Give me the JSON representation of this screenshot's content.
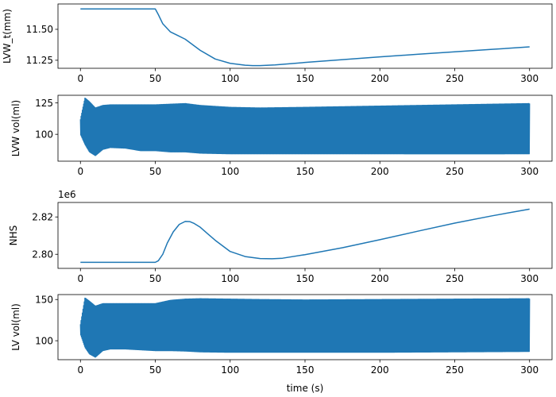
{
  "chart_data": [
    {
      "type": "line",
      "ylabel": "LVW_t(mm)",
      "xlabel": "",
      "xlim": [
        -15,
        315
      ],
      "ylim": [
        11.185,
        11.705
      ],
      "xticks": [
        0,
        50,
        100,
        150,
        200,
        250,
        300
      ],
      "xtick_labels": [
        "0",
        "50",
        "100",
        "150",
        "200",
        "250",
        "300"
      ],
      "yticks": [
        11.25,
        11.5
      ],
      "ytick_labels": [
        "11.25",
        "11.50"
      ],
      "offset_text": "",
      "color": "#1f77b4",
      "series": [
        {
          "x": [
            0,
            10,
            20,
            30,
            40,
            50,
            52,
            55,
            60,
            65,
            70,
            75,
            80,
            90,
            100,
            110,
            115,
            120,
            130,
            140,
            150,
            175,
            200,
            225,
            250,
            275,
            300
          ],
          "y": [
            11.665,
            11.665,
            11.665,
            11.665,
            11.665,
            11.665,
            11.62,
            11.545,
            11.48,
            11.45,
            11.42,
            11.375,
            11.33,
            11.26,
            11.225,
            11.21,
            11.207,
            11.207,
            11.212,
            11.222,
            11.232,
            11.255,
            11.277,
            11.298,
            11.318,
            11.338,
            11.358
          ]
        }
      ]
    },
    {
      "type": "line",
      "ylabel": "LVW vol(ml)",
      "xlabel": "",
      "xlim": [
        -15,
        315
      ],
      "ylim": [
        78.6,
        131.1
      ],
      "xticks": [
        0,
        50,
        100,
        150,
        200,
        250,
        300
      ],
      "xtick_labels": [
        "0",
        "50",
        "100",
        "150",
        "200",
        "250",
        "300"
      ],
      "yticks": [
        100,
        125
      ],
      "ytick_labels": [
        "100",
        "125"
      ],
      "offset_text": "",
      "color": "#1f77b4",
      "oscillating": true,
      "series": [
        {
          "x": [
            0,
            3,
            6,
            10,
            15,
            20,
            30,
            40,
            50,
            60,
            70,
            80,
            100,
            120,
            150,
            200,
            250,
            300
          ],
          "upper": [
            112,
            129,
            126,
            121,
            123,
            123.5,
            123.5,
            123.5,
            123.5,
            124,
            124.5,
            123,
            121.5,
            121,
            121.5,
            122.5,
            123.5,
            124.5
          ],
          "lower": [
            100,
            92,
            86,
            83,
            88,
            89.5,
            89,
            87,
            87,
            86,
            86,
            85,
            84.5,
            84.5,
            84.5,
            84.5,
            84.5,
            84.5
          ]
        }
      ]
    },
    {
      "type": "line",
      "ylabel": "NHS",
      "xlabel": "",
      "xlim": [
        -15,
        315
      ],
      "ylim": [
        2792450,
        2827750
      ],
      "xticks": [
        0,
        50,
        100,
        150,
        200,
        250,
        300
      ],
      "xtick_labels": [
        "0",
        "50",
        "100",
        "150",
        "200",
        "250",
        "300"
      ],
      "yticks": [
        2800000,
        2820000
      ],
      "ytick_labels": [
        "2.80",
        "2.82"
      ],
      "offset_text": "1e6",
      "color": "#1f77b4",
      "series": [
        {
          "x": [
            0,
            10,
            20,
            30,
            40,
            50,
            52,
            55,
            58,
            62,
            66,
            70,
            73,
            76,
            80,
            85,
            90,
            100,
            110,
            120,
            128,
            135,
            150,
            175,
            200,
            225,
            250,
            275,
            300
          ],
          "y": [
            2795700,
            2795700,
            2795700,
            2795700,
            2795700,
            2795700,
            2796500,
            2800000,
            2806000,
            2812000,
            2816000,
            2817600,
            2817500,
            2816500,
            2814500,
            2811000,
            2807500,
            2801500,
            2798800,
            2797700,
            2797600,
            2797900,
            2799800,
            2803500,
            2807800,
            2812300,
            2816700,
            2820600,
            2824200
          ]
        }
      ]
    },
    {
      "type": "line",
      "ylabel": "LV vol(ml)",
      "xlabel": "time (s)",
      "xlim": [
        -15,
        315
      ],
      "ylim": [
        77.0,
        156.0
      ],
      "xticks": [
        0,
        50,
        100,
        150,
        200,
        250,
        300
      ],
      "xtick_labels": [
        "0",
        "50",
        "100",
        "150",
        "200",
        "250",
        "300"
      ],
      "yticks": [
        100,
        150
      ],
      "ytick_labels": [
        "100",
        "150"
      ],
      "offset_text": "",
      "color": "#1f77b4",
      "oscillating": true,
      "series": [
        {
          "x": [
            0,
            3,
            6,
            10,
            15,
            20,
            30,
            40,
            50,
            55,
            60,
            70,
            80,
            100,
            120,
            150,
            200,
            250,
            300
          ],
          "upper": [
            120,
            152,
            148,
            142,
            145,
            145,
            145,
            145,
            145,
            147,
            149,
            150.5,
            151,
            150.5,
            150,
            149.5,
            150,
            150.5,
            151
          ],
          "lower": [
            108,
            92,
            84,
            80,
            88,
            90,
            90,
            89,
            88,
            88,
            88,
            87.5,
            86.5,
            86,
            86,
            86,
            86,
            86.5,
            87
          ]
        }
      ]
    }
  ]
}
